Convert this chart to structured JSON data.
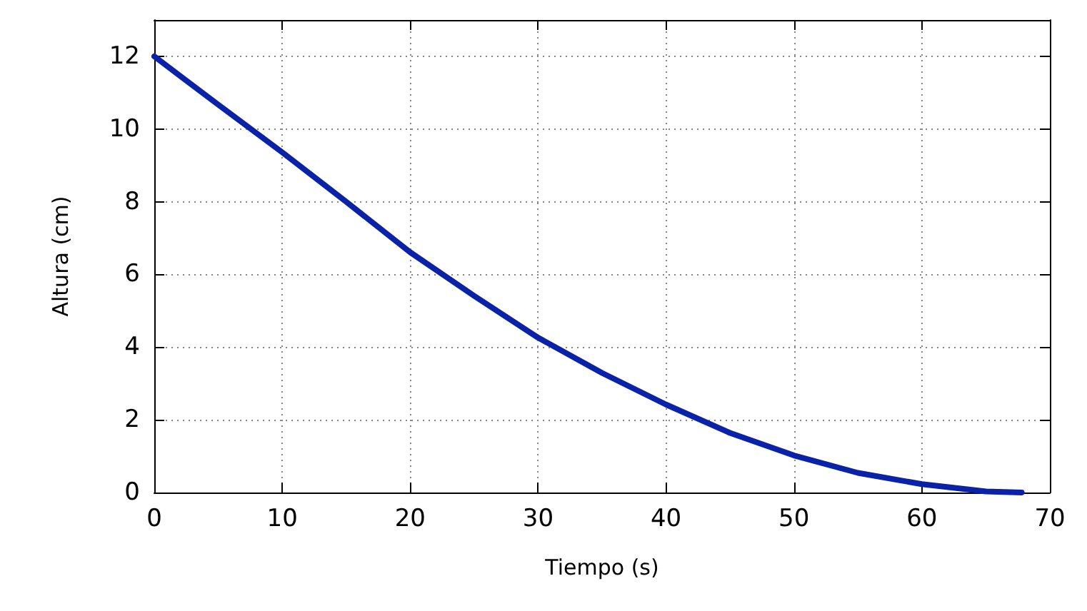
{
  "chart_data": {
    "type": "line",
    "xlabel": "Tiempo (s)",
    "ylabel": "Altura (cm)",
    "x": [
      0,
      5,
      10,
      15,
      20,
      25,
      30,
      35,
      40,
      45,
      50,
      55,
      60,
      65,
      67.8
    ],
    "series": [
      {
        "color": "#0a22a8",
        "values": [
          12,
          10.67,
          9.36,
          8.0,
          6.61,
          5.41,
          4.26,
          3.29,
          2.42,
          1.64,
          1.02,
          0.54,
          0.23,
          0.03,
          0
        ]
      }
    ],
    "xlim": [
      0,
      70
    ],
    "xticks": [
      0,
      10,
      20,
      30,
      40,
      50,
      60,
      70
    ],
    "ylim": [
      0,
      13
    ],
    "yticks": [
      0,
      2,
      4,
      6,
      8,
      10,
      12
    ],
    "grid": true,
    "marker": "none",
    "line_style": "solid"
  }
}
